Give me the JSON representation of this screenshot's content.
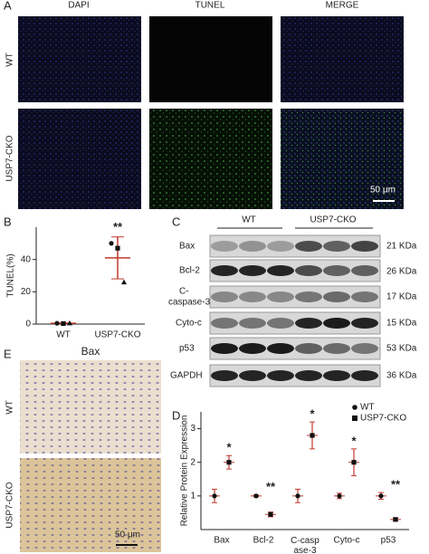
{
  "panels": {
    "A": {
      "label": "A",
      "columns": [
        "DAPI",
        "TUNEL",
        "MERGE"
      ],
      "rows": [
        "WT",
        "USP7-CKO"
      ],
      "scale_bar": "50 μm"
    },
    "C": {
      "label": "C",
      "groups": [
        "WT",
        "USP7-CKO"
      ],
      "proteins": [
        "Bax",
        "Bcl-2",
        "C-",
        "caspase-3",
        "Cyto-c",
        "p53",
        "GAPDH"
      ],
      "sizes": [
        "21 KDa",
        "26 KDa",
        "17 KDa",
        "15 KDa",
        "53 KDa",
        "36 KDa"
      ]
    },
    "E": {
      "label": "E",
      "title": "Bax",
      "rows": [
        "WT",
        "USP7-CKO"
      ],
      "scale_bar": "50 μm"
    }
  },
  "chart_data": [
    {
      "type": "strip",
      "panel": "B",
      "ylabel": "TUNEL(%)",
      "categories": [
        "WT",
        "USP7-CKO"
      ],
      "points": [
        [
          0.5,
          0.3,
          0.6
        ],
        [
          50,
          47,
          26
        ]
      ],
      "mean": [
        0.5,
        41
      ],
      "sd": [
        0.2,
        13
      ],
      "significance": [
        null,
        "**"
      ],
      "ylim": [
        0,
        60
      ],
      "yticks": [
        0,
        20,
        40
      ],
      "color": "#111",
      "error_color": "#c0392b"
    },
    {
      "type": "dotplot",
      "panel": "D",
      "ylabel": "Relative Protein Expression",
      "categories": [
        "Bax",
        "Bcl-2",
        "C-casp\nase-3",
        "Cyto-c",
        "p53"
      ],
      "series": [
        {
          "name": "WT",
          "marker": "circle",
          "color": "#111",
          "values": [
            1.0,
            1.0,
            1.0,
            1.0,
            1.0
          ],
          "errors": [
            0.2,
            0.03,
            0.2,
            0.08,
            0.1
          ]
        },
        {
          "name": "USP7-CKO",
          "marker": "square",
          "color": "#111",
          "values": [
            2.0,
            0.45,
            2.8,
            2.0,
            0.3
          ],
          "errors": [
            0.2,
            0.07,
            0.4,
            0.4,
            0.04
          ]
        }
      ],
      "significance": [
        "*",
        "**",
        "*",
        "*",
        "**"
      ],
      "ylim": [
        0,
        3.5
      ],
      "yticks": [
        1,
        2,
        3
      ],
      "error_color": "#c0392b"
    }
  ]
}
